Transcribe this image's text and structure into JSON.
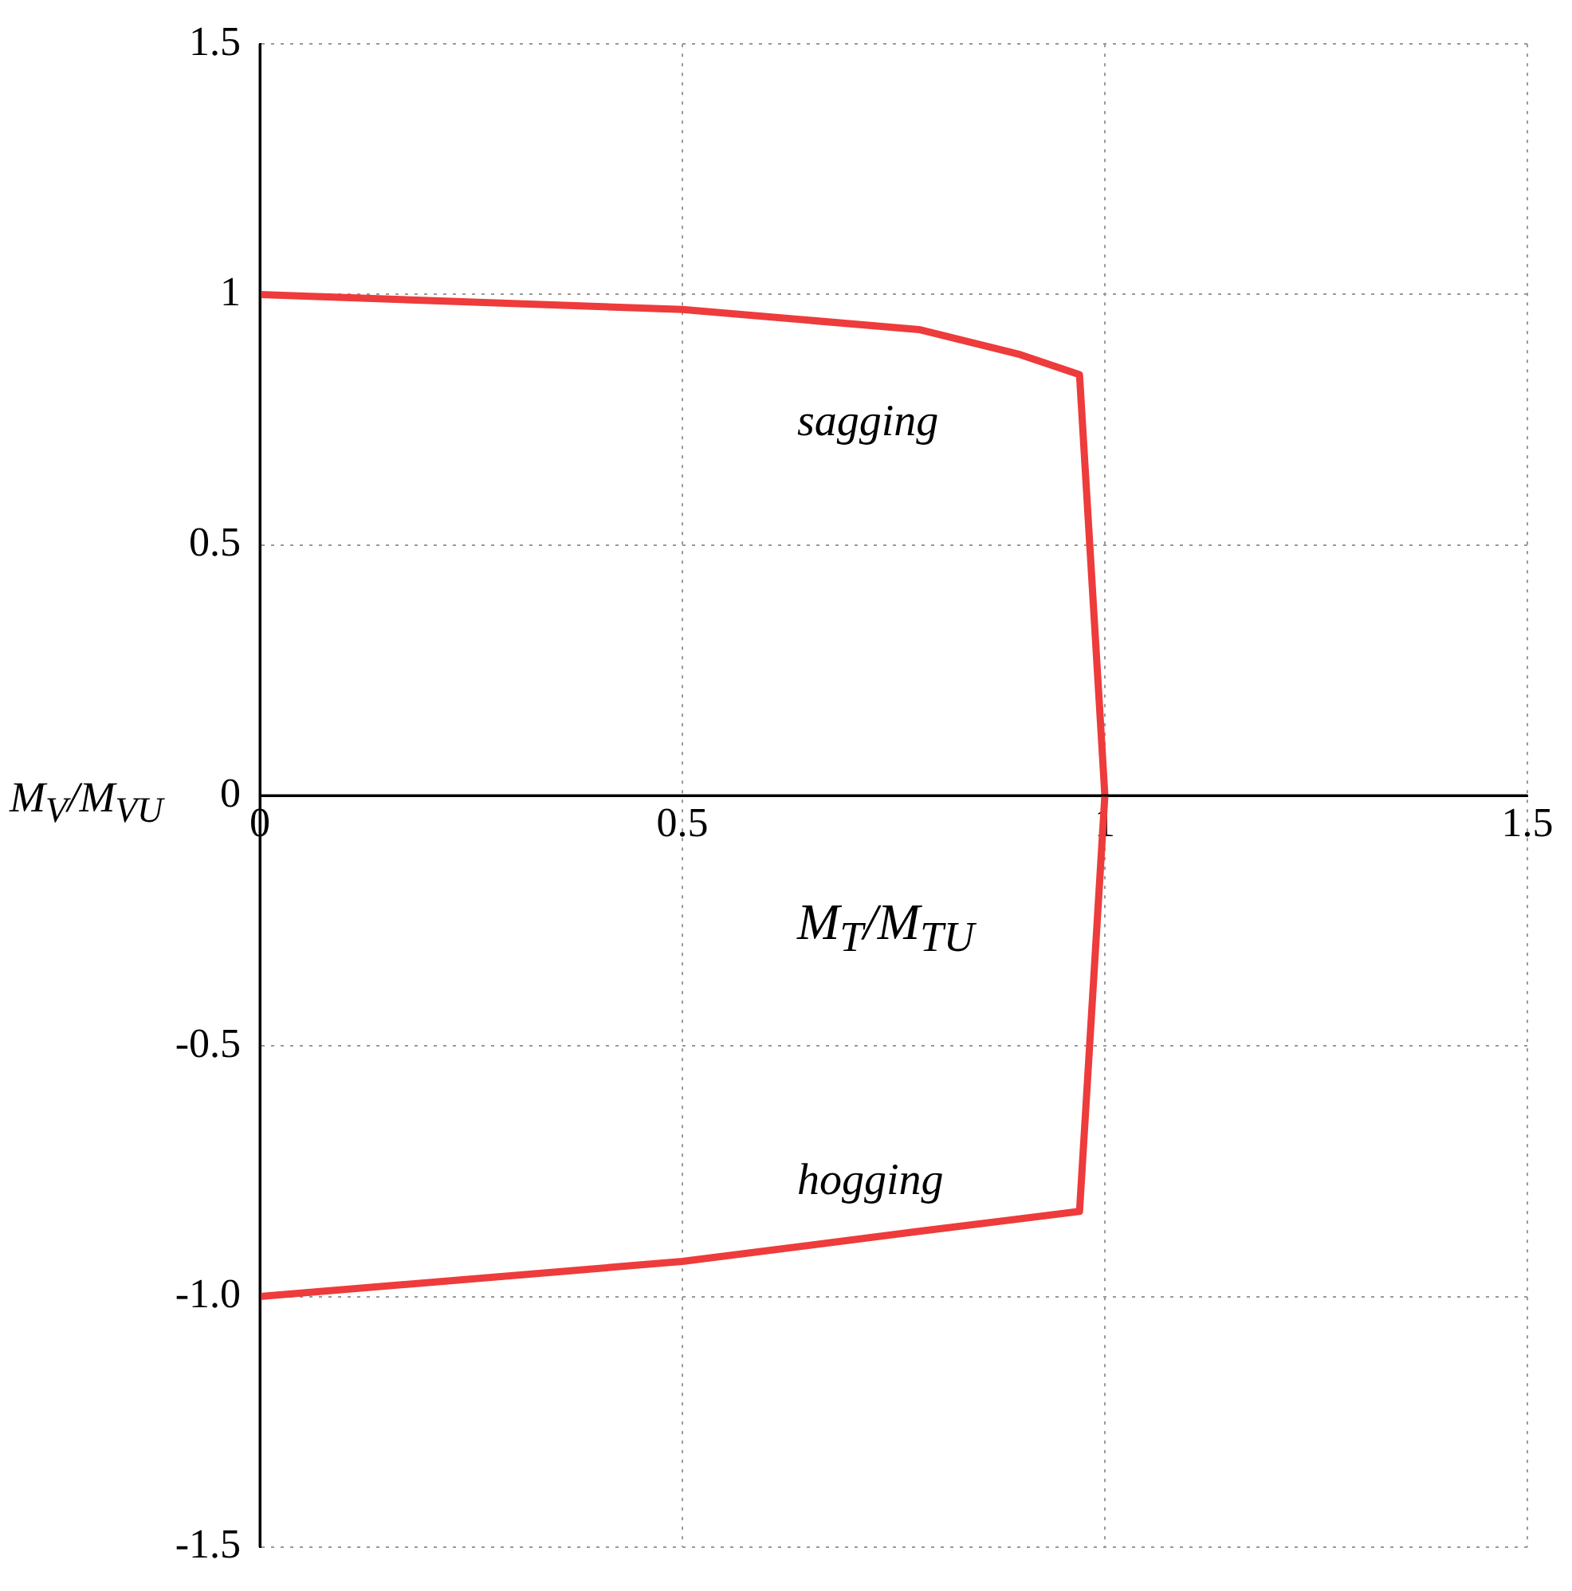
{
  "chart_data": {
    "type": "line",
    "xlabel": "M$_{T}$/M$_{TU}$",
    "ylabel": "M$_{V}$/M$_{VU}$",
    "xlim": [
      0,
      1.5
    ],
    "ylim": [
      -1.5,
      1.5
    ],
    "xticks": [
      0,
      0.5,
      1,
      1.5
    ],
    "yticks": [
      -1.5,
      {
        "value": -1,
        "label": "-1.0"
      },
      -0.5,
      0,
      0.5,
      1,
      1.5
    ],
    "grid": true,
    "line_style": "solid",
    "series": [
      {
        "color": "#ee3b3b",
        "x": [
          0,
          0.5,
          0.78,
          0.9,
          0.97,
          1.0,
          0.97,
          0.78,
          0.5,
          0
        ],
        "values": [
          1,
          0.97,
          0.93,
          0.88,
          0.84,
          0,
          -0.83,
          -0.87,
          -0.93,
          -1
        ]
      }
    ],
    "annotations": [
      "sagging",
      "hogging"
    ]
  }
}
